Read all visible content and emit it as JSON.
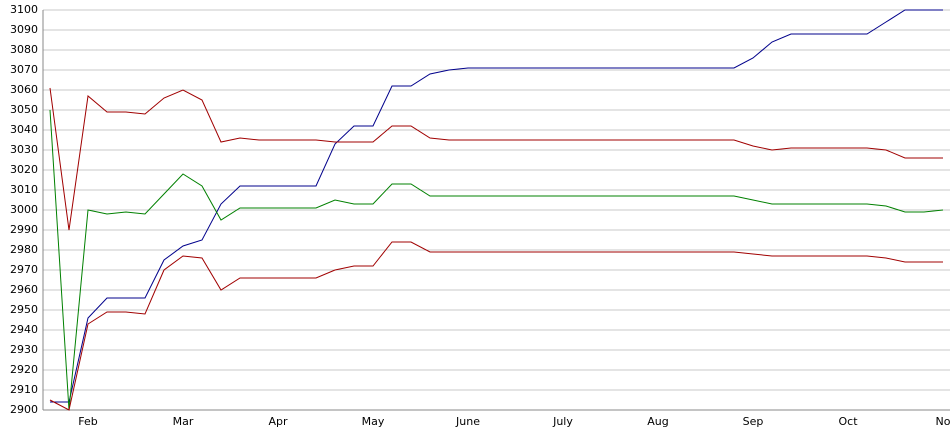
{
  "chart_data": {
    "type": "line",
    "categories": [
      null,
      null,
      "Feb",
      null,
      null,
      null,
      null,
      "Mar",
      null,
      null,
      null,
      null,
      "Apr",
      null,
      null,
      null,
      null,
      "May",
      null,
      null,
      null,
      null,
      "June",
      null,
      null,
      null,
      null,
      "July",
      null,
      null,
      null,
      null,
      "Aug",
      null,
      null,
      null,
      null,
      "Sep",
      null,
      null,
      null,
      null,
      "Oct",
      null,
      null,
      null,
      null,
      "No"
    ],
    "series": [
      {
        "color": "#00008b",
        "values": [
          2904,
          2904,
          2946,
          2956,
          2956,
          2956,
          2975,
          2982,
          2985,
          3003,
          3012,
          3012,
          3012,
          3012,
          3012,
          3033,
          3042,
          3042,
          3062,
          3062,
          3068,
          3070,
          3071,
          3071,
          3071,
          3071,
          3071,
          3071,
          3071,
          3071,
          3071,
          3071,
          3071,
          3071,
          3071,
          3071,
          3071,
          3076,
          3084,
          3088,
          3088,
          3088,
          3088,
          3088,
          3094,
          3100,
          3100,
          3100
        ]
      },
      {
        "color": "#a00000",
        "values": [
          3061,
          2990,
          3057,
          3049,
          3049,
          3048,
          3056,
          3060,
          3055,
          3034,
          3036,
          3035,
          3035,
          3035,
          3035,
          3034,
          3034,
          3034,
          3042,
          3042,
          3036,
          3035,
          3035,
          3035,
          3035,
          3035,
          3035,
          3035,
          3035,
          3035,
          3035,
          3035,
          3035,
          3035,
          3035,
          3035,
          3035,
          3032,
          3030,
          3031,
          3031,
          3031,
          3031,
          3031,
          3030,
          3026,
          3026,
          3026
        ]
      },
      {
        "color": "#008000",
        "values": [
          3050,
          2900,
          3000,
          2998,
          2999,
          2998,
          3008,
          3018,
          3012,
          2995,
          3001,
          3001,
          3001,
          3001,
          3001,
          3005,
          3003,
          3003,
          3013,
          3013,
          3007,
          3007,
          3007,
          3007,
          3007,
          3007,
          3007,
          3007,
          3007,
          3007,
          3007,
          3007,
          3007,
          3007,
          3007,
          3007,
          3007,
          3005,
          3003,
          3003,
          3003,
          3003,
          3003,
          3003,
          3002,
          2999,
          2999,
          3000
        ]
      },
      {
        "color": "#a00000",
        "values": [
          2905,
          2900,
          2943,
          2949,
          2949,
          2948,
          2970,
          2977,
          2976,
          2960,
          2966,
          2966,
          2966,
          2966,
          2966,
          2970,
          2972,
          2972,
          2984,
          2984,
          2979,
          2979,
          2979,
          2979,
          2979,
          2979,
          2979,
          2979,
          2979,
          2979,
          2979,
          2979,
          2979,
          2979,
          2979,
          2979,
          2979,
          2978,
          2977,
          2977,
          2977,
          2977,
          2977,
          2977,
          2976,
          2974,
          2974,
          2974
        ]
      }
    ],
    "ylim": [
      2900,
      3100
    ],
    "yticks": [
      2900,
      2910,
      2920,
      2930,
      2940,
      2950,
      2960,
      2970,
      2980,
      2990,
      3000,
      3010,
      3020,
      3030,
      3040,
      3050,
      3060,
      3070,
      3080,
      3090,
      3100
    ],
    "grid": true
  }
}
